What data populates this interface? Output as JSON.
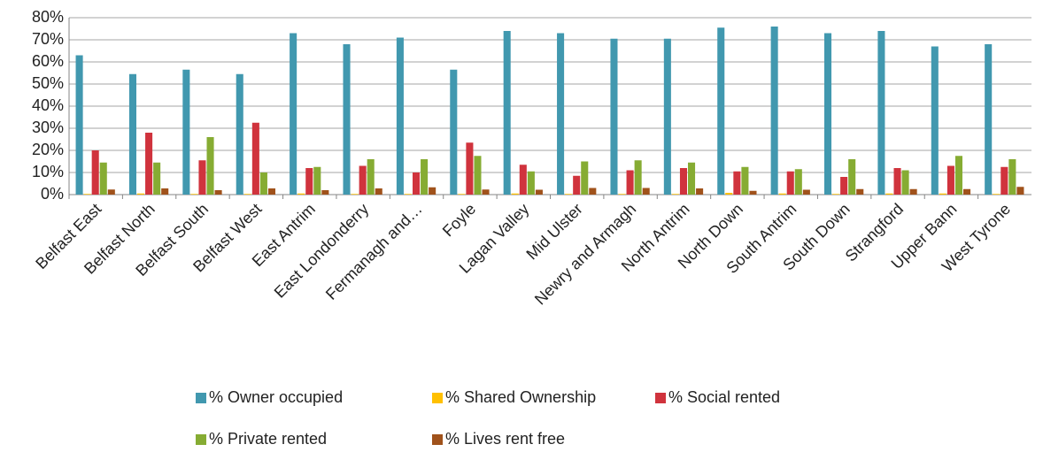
{
  "chart_data": {
    "type": "bar",
    "categories": [
      "Belfast East",
      "Belfast North",
      "Belfast South",
      "Belfast West",
      "East Antrim",
      "East Londonderry",
      "Fermanagh and…",
      "Foyle",
      "Lagan Valley",
      "Mid Ulster",
      "Newry and Armagh",
      "North Antrim",
      "North Down",
      "South Antrim",
      "South Down",
      "Strangford",
      "Upper Bann",
      "West Tyrone"
    ],
    "series": [
      {
        "name": "% Owner occupied",
        "color": "#4198af",
        "values": [
          63,
          54.5,
          56.5,
          54.5,
          73,
          68,
          71,
          56.5,
          74,
          73,
          70.5,
          70.5,
          75.5,
          76,
          73,
          74,
          67,
          68
        ]
      },
      {
        "name": "% Shared Ownership",
        "color": "#ffc000",
        "values": [
          0.3,
          0.5,
          0.3,
          0.3,
          0.5,
          0.3,
          0.3,
          0.3,
          0.5,
          0.3,
          0.3,
          0.3,
          0.8,
          0.5,
          0.3,
          0.5,
          0.5,
          0.3
        ]
      },
      {
        "name": "% Social rented",
        "color": "#d0333d",
        "values": [
          20,
          28,
          15.5,
          32.5,
          12,
          13,
          10,
          23.5,
          13.5,
          8.5,
          11,
          12,
          10.5,
          10.5,
          8,
          12,
          13,
          12.5
        ]
      },
      {
        "name": "% Private rented",
        "color": "#86ac33",
        "values": [
          14.5,
          14.5,
          26,
          10,
          12.5,
          16,
          16,
          17.5,
          10.5,
          15,
          15.5,
          14.5,
          12.5,
          11.5,
          16,
          11,
          17.5,
          16
        ]
      },
      {
        "name": "% Lives rent free",
        "color": "#a0521b",
        "values": [
          2.3,
          2.8,
          2,
          2.8,
          2,
          2.8,
          3.3,
          2.3,
          2.2,
          3,
          3,
          2.8,
          1.7,
          2.2,
          2.5,
          2.5,
          2.5,
          3.5
        ]
      }
    ],
    "ylim": [
      0,
      80
    ],
    "yticks": [
      {
        "value": 0,
        "label": "0%"
      },
      {
        "value": 10,
        "label": "10%"
      },
      {
        "value": 20,
        "label": "20%"
      },
      {
        "value": 30,
        "label": "30%"
      },
      {
        "value": 40,
        "label": "40%"
      },
      {
        "value": 50,
        "label": "50%"
      },
      {
        "value": 60,
        "label": "60%"
      },
      {
        "value": 70,
        "label": "70%"
      },
      {
        "value": 80,
        "label": "80%"
      }
    ],
    "grid": true,
    "legend": "bottom"
  }
}
